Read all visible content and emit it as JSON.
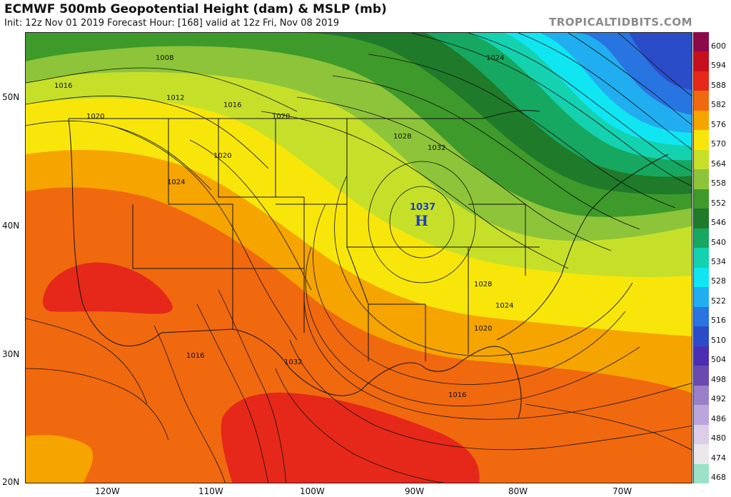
{
  "header": {
    "title": "ECMWF 500mb Geopotential Height (dam) & MSLP (mb)",
    "subtitle": "Init: 12z Nov 01 2019   Forecast Hour: [168]   valid at 12z Fri, Nov 08 2019",
    "brand": "TROPICALTIDBITS.COM"
  },
  "axes": {
    "lat_labels": [
      "50N",
      "40N",
      "30N",
      "20N"
    ],
    "lon_labels": [
      "120W",
      "110W",
      "100W",
      "90W",
      "80W",
      "70W"
    ]
  },
  "legend": {
    "items": [
      {
        "label": "600",
        "color": "#8a0a4a"
      },
      {
        "label": "594",
        "color": "#c80f1e"
      },
      {
        "label": "588",
        "color": "#e5281a"
      },
      {
        "label": "582",
        "color": "#f0690f"
      },
      {
        "label": "576",
        "color": "#f5a400"
      },
      {
        "label": "570",
        "color": "#f8e60a"
      },
      {
        "label": "564",
        "color": "#c6e02a"
      },
      {
        "label": "558",
        "color": "#8dc43a"
      },
      {
        "label": "552",
        "color": "#3e9a2a"
      },
      {
        "label": "546",
        "color": "#1f7a2a"
      },
      {
        "label": "540",
        "color": "#16a860"
      },
      {
        "label": "534",
        "color": "#14d2b0"
      },
      {
        "label": "528",
        "color": "#10e6f2"
      },
      {
        "label": "522",
        "color": "#20aef0"
      },
      {
        "label": "516",
        "color": "#2874e0"
      },
      {
        "label": "510",
        "color": "#2b4cc8"
      },
      {
        "label": "504",
        "color": "#4a2fb2"
      },
      {
        "label": "498",
        "color": "#6a4ab0"
      },
      {
        "label": "492",
        "color": "#9a80c8"
      },
      {
        "label": "486",
        "color": "#bba6dc"
      },
      {
        "label": "480",
        "color": "#dccde8"
      },
      {
        "label": "474",
        "color": "#eae8ea"
      },
      {
        "label": "468",
        "color": "#9ce2c8"
      }
    ]
  },
  "map": {
    "pressure_labels": [
      "1008",
      "1016",
      "1012",
      "1016",
      "1020",
      "1020",
      "1024",
      "1020",
      "1028",
      "1032",
      "1024",
      "1028",
      "1024",
      "1020",
      "1016",
      "1032",
      "1016"
    ],
    "high_center": {
      "value": "1037",
      "letter": "H"
    }
  }
}
